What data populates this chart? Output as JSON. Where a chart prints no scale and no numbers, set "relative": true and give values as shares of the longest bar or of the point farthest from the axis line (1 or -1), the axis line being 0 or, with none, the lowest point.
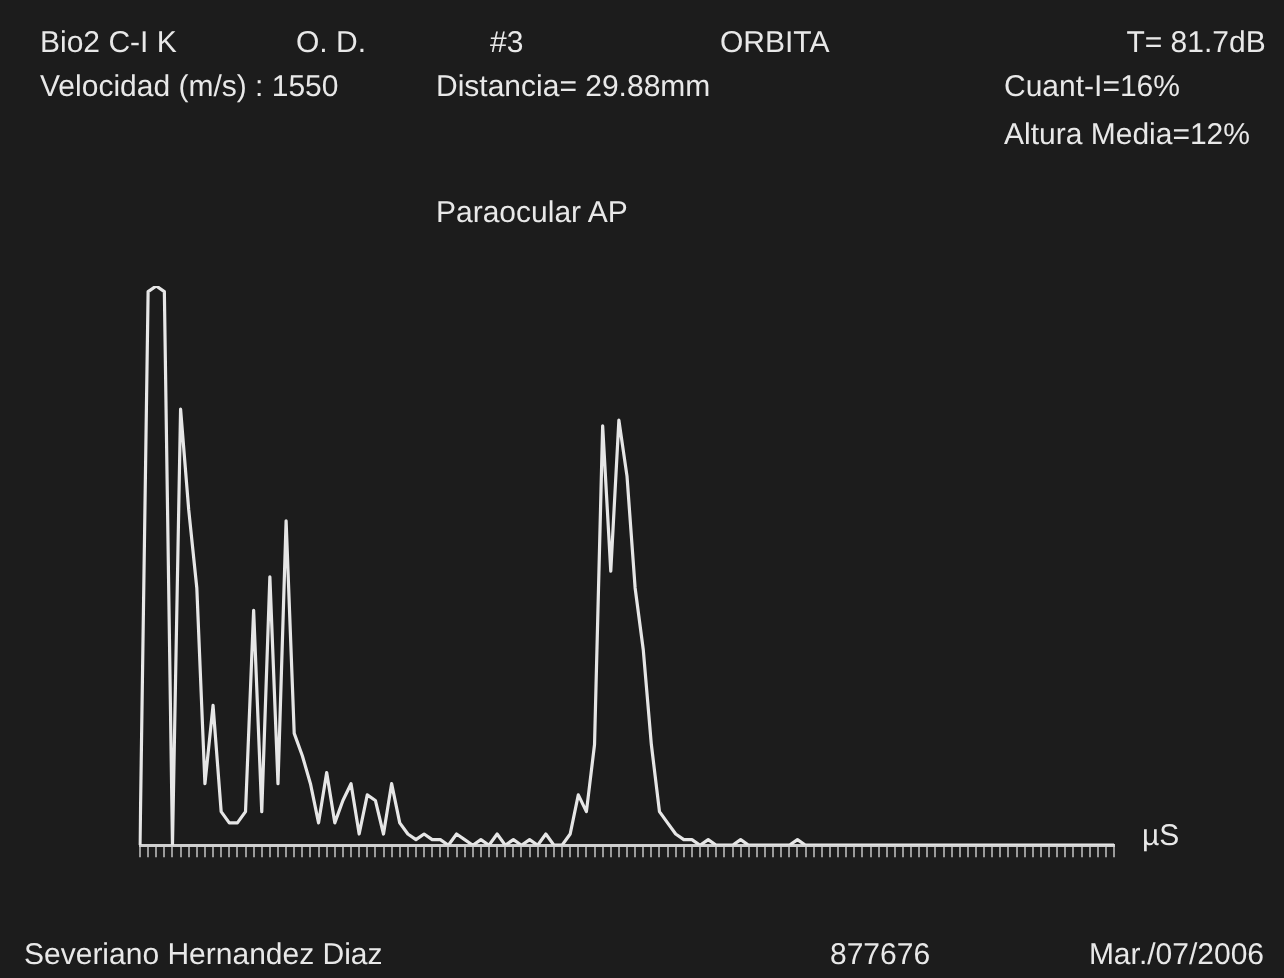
{
  "chart_data": {
    "type": "line",
    "relative": true,
    "xlabel": "µS",
    "grid": false,
    "color": "#e6e6e6",
    "categories": [
      null,
      null,
      null,
      null,
      null,
      null,
      null,
      null,
      null,
      null,
      null,
      null,
      null,
      null,
      null,
      null,
      null,
      null,
      null,
      null,
      null,
      null,
      null,
      null,
      null,
      null,
      null,
      null,
      null,
      null,
      null,
      null,
      null,
      null,
      null,
      null,
      null,
      null,
      null,
      null,
      null,
      null,
      null,
      null,
      null,
      null,
      null,
      null,
      null,
      null,
      null,
      null,
      null,
      null,
      null,
      null,
      null,
      null,
      null,
      null,
      null,
      null,
      null,
      null,
      null,
      null,
      null,
      null,
      null,
      null,
      null,
      null,
      null,
      null,
      null,
      null,
      null,
      null,
      null,
      null,
      null,
      null,
      null,
      null,
      null,
      null,
      null,
      null,
      null,
      null,
      null,
      null,
      null,
      null,
      null,
      null,
      null,
      null,
      null,
      null,
      null,
      null,
      null,
      null,
      null,
      null,
      null,
      null,
      null,
      null,
      null,
      null,
      null,
      null,
      null,
      null,
      null,
      null,
      null,
      null,
      null
    ],
    "values": [
      0,
      0.99,
      1,
      0.99,
      0,
      0.78,
      0.6,
      0.46,
      0.11,
      0.25,
      0.06,
      0.04,
      0.04,
      0.06,
      0.42,
      0.06,
      0.48,
      0.11,
      0.58,
      0.2,
      0.16,
      0.11,
      0.04,
      0.13,
      0.04,
      0.08,
      0.11,
      0.02,
      0.09,
      0.08,
      0.02,
      0.11,
      0.04,
      0.02,
      0.01,
      0.02,
      0.01,
      0.01,
      0,
      0.02,
      0.01,
      0,
      0.01,
      0,
      0.02,
      0,
      0.01,
      0,
      0.01,
      0,
      0.02,
      0,
      0,
      0.02,
      0.09,
      0.06,
      0.18,
      0.75,
      0.49,
      0.76,
      0.66,
      0.46,
      0.35,
      0.18,
      0.06,
      0.04,
      0.02,
      0.01,
      0.01,
      0,
      0.01,
      0,
      0,
      0,
      0.01,
      0,
      0,
      0,
      0,
      0,
      0,
      0.01,
      0,
      0,
      0,
      0,
      0,
      0,
      0,
      0,
      0,
      0,
      0,
      0,
      0,
      0,
      0,
      0,
      0,
      0,
      0,
      0,
      0,
      0,
      0,
      0,
      0,
      0,
      0,
      0,
      0,
      0,
      0,
      0,
      0,
      0,
      0,
      0,
      0,
      0,
      0
    ],
    "annotations": [
      "Bio2 C-I K",
      "O. D.",
      "#3",
      "ORBITA",
      "T= 81.7dB",
      "Velocidad (m/s) : 1550",
      "Distancia= 29.88mm",
      "Cuant-I=16%",
      "Altura Media=12%",
      "Paraocular AP",
      "Severiano Hernandez Diaz",
      "877676",
      "Mar./07/2006"
    ]
  }
}
